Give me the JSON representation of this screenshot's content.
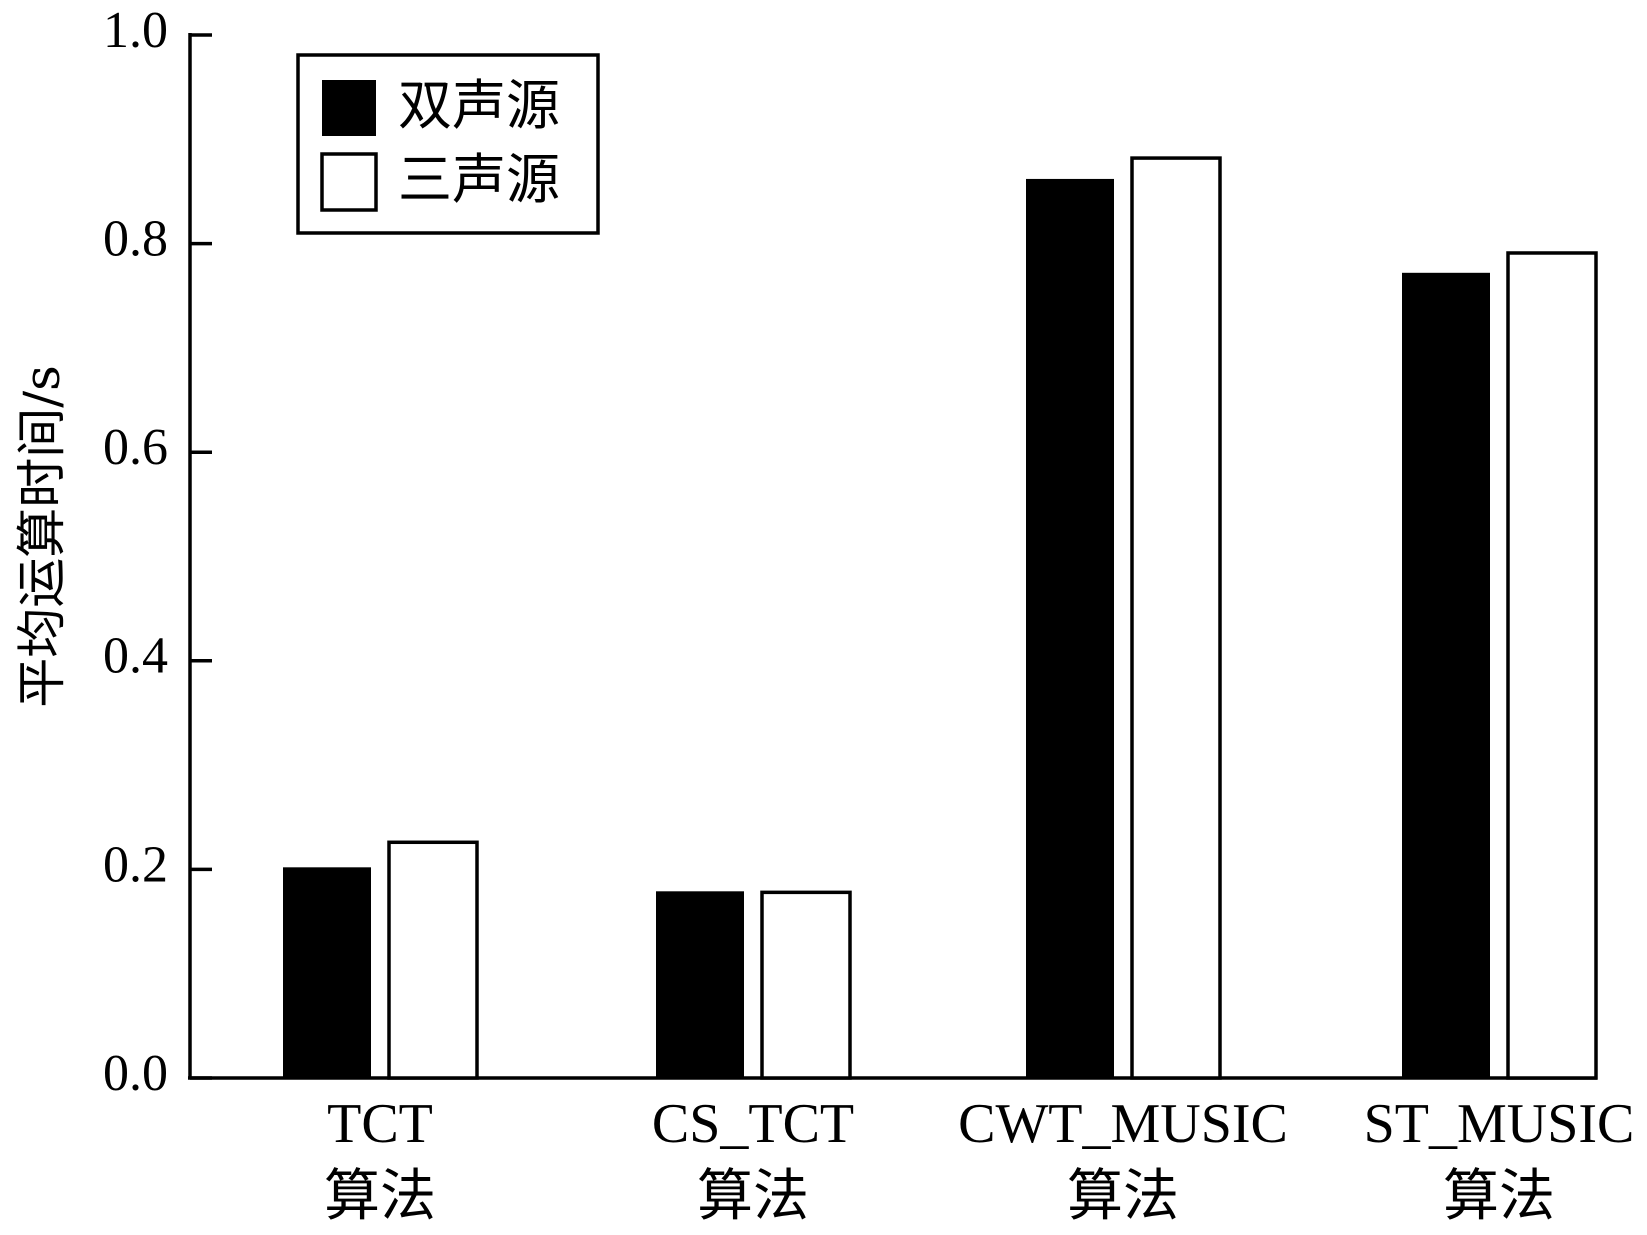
{
  "chart_data": {
    "type": "bar",
    "ylabel": "平均运算时间/s",
    "ylim": [
      0,
      1.0
    ],
    "yticks": [
      "0.0",
      "0.2",
      "0.4",
      "0.6",
      "0.8",
      "1.0"
    ],
    "categories": [
      {
        "line1": "TCT",
        "line2": "算法"
      },
      {
        "line1": "CS_TCT",
        "line2": "算法"
      },
      {
        "line1": "CWT_MUSIC",
        "line2": "算法"
      },
      {
        "line1": "ST_MUSIC",
        "line2": "算法"
      }
    ],
    "series": [
      {
        "name": "双声源",
        "fill": "#000000",
        "values": [
          0.202,
          0.179,
          0.862,
          0.772
        ]
      },
      {
        "name": "三声源",
        "fill": "#ffffff",
        "values": [
          0.226,
          0.178,
          0.882,
          0.791
        ]
      }
    ],
    "legend_position": "top-left",
    "grid": false
  }
}
